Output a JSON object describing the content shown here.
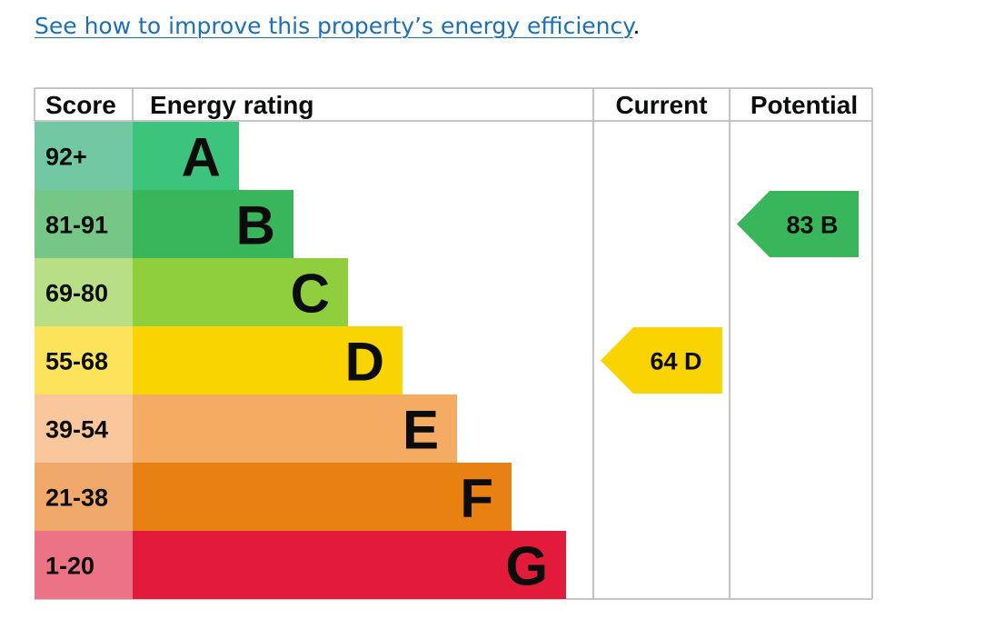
{
  "link": {
    "text": "See how to improve this property’s energy efficiency",
    "trailing": "."
  },
  "chart_data": {
    "type": "bar",
    "headers": {
      "score": "Score",
      "rating": "Energy rating",
      "current": "Current",
      "potential": "Potential"
    },
    "bands": [
      {
        "letter": "A",
        "range": "92+",
        "color": "#3cc47c",
        "score_color": "#71c8a2"
      },
      {
        "letter": "B",
        "range": "81-91",
        "color": "#39b55b",
        "score_color": "#76c786"
      },
      {
        "letter": "C",
        "range": "69-80",
        "color": "#8fcf3d",
        "score_color": "#b8df86"
      },
      {
        "letter": "D",
        "range": "55-68",
        "color": "#fad400",
        "score_color": "#fde35c"
      },
      {
        "letter": "E",
        "range": "39-54",
        "color": "#f4ab62",
        "score_color": "#f9c79b"
      },
      {
        "letter": "F",
        "range": "21-38",
        "color": "#e88112",
        "score_color": "#f0a96a"
      },
      {
        "letter": "G",
        "range": "1-20",
        "color": "#e31b3a",
        "score_color": "#ec7385"
      }
    ],
    "current": {
      "value": 64,
      "band": "D",
      "color": "#fad400"
    },
    "potential": {
      "value": 83,
      "band": "B",
      "color": "#39b55b"
    }
  }
}
